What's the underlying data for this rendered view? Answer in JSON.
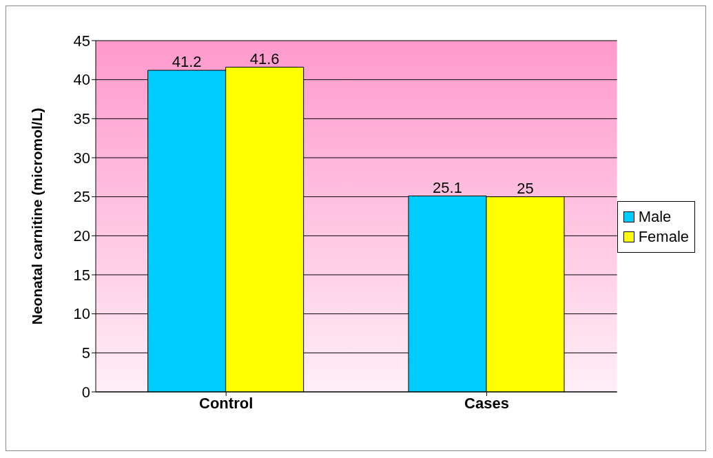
{
  "chart_data": {
    "type": "bar",
    "ylabel": "Neonatal carnitine (micromol/L)",
    "categories": [
      "Control",
      "Cases"
    ],
    "series": [
      {
        "name": "Male",
        "color": "#00ccff",
        "values": [
          41.2,
          25.1
        ]
      },
      {
        "name": "Female",
        "color": "#ffff00",
        "values": [
          41.6,
          25
        ]
      }
    ],
    "ylim": [
      0,
      45
    ],
    "yticks": [
      0,
      5,
      10,
      15,
      20,
      25,
      30,
      35,
      40,
      45
    ],
    "grid": "y",
    "legend": "right",
    "data_labels": true
  }
}
